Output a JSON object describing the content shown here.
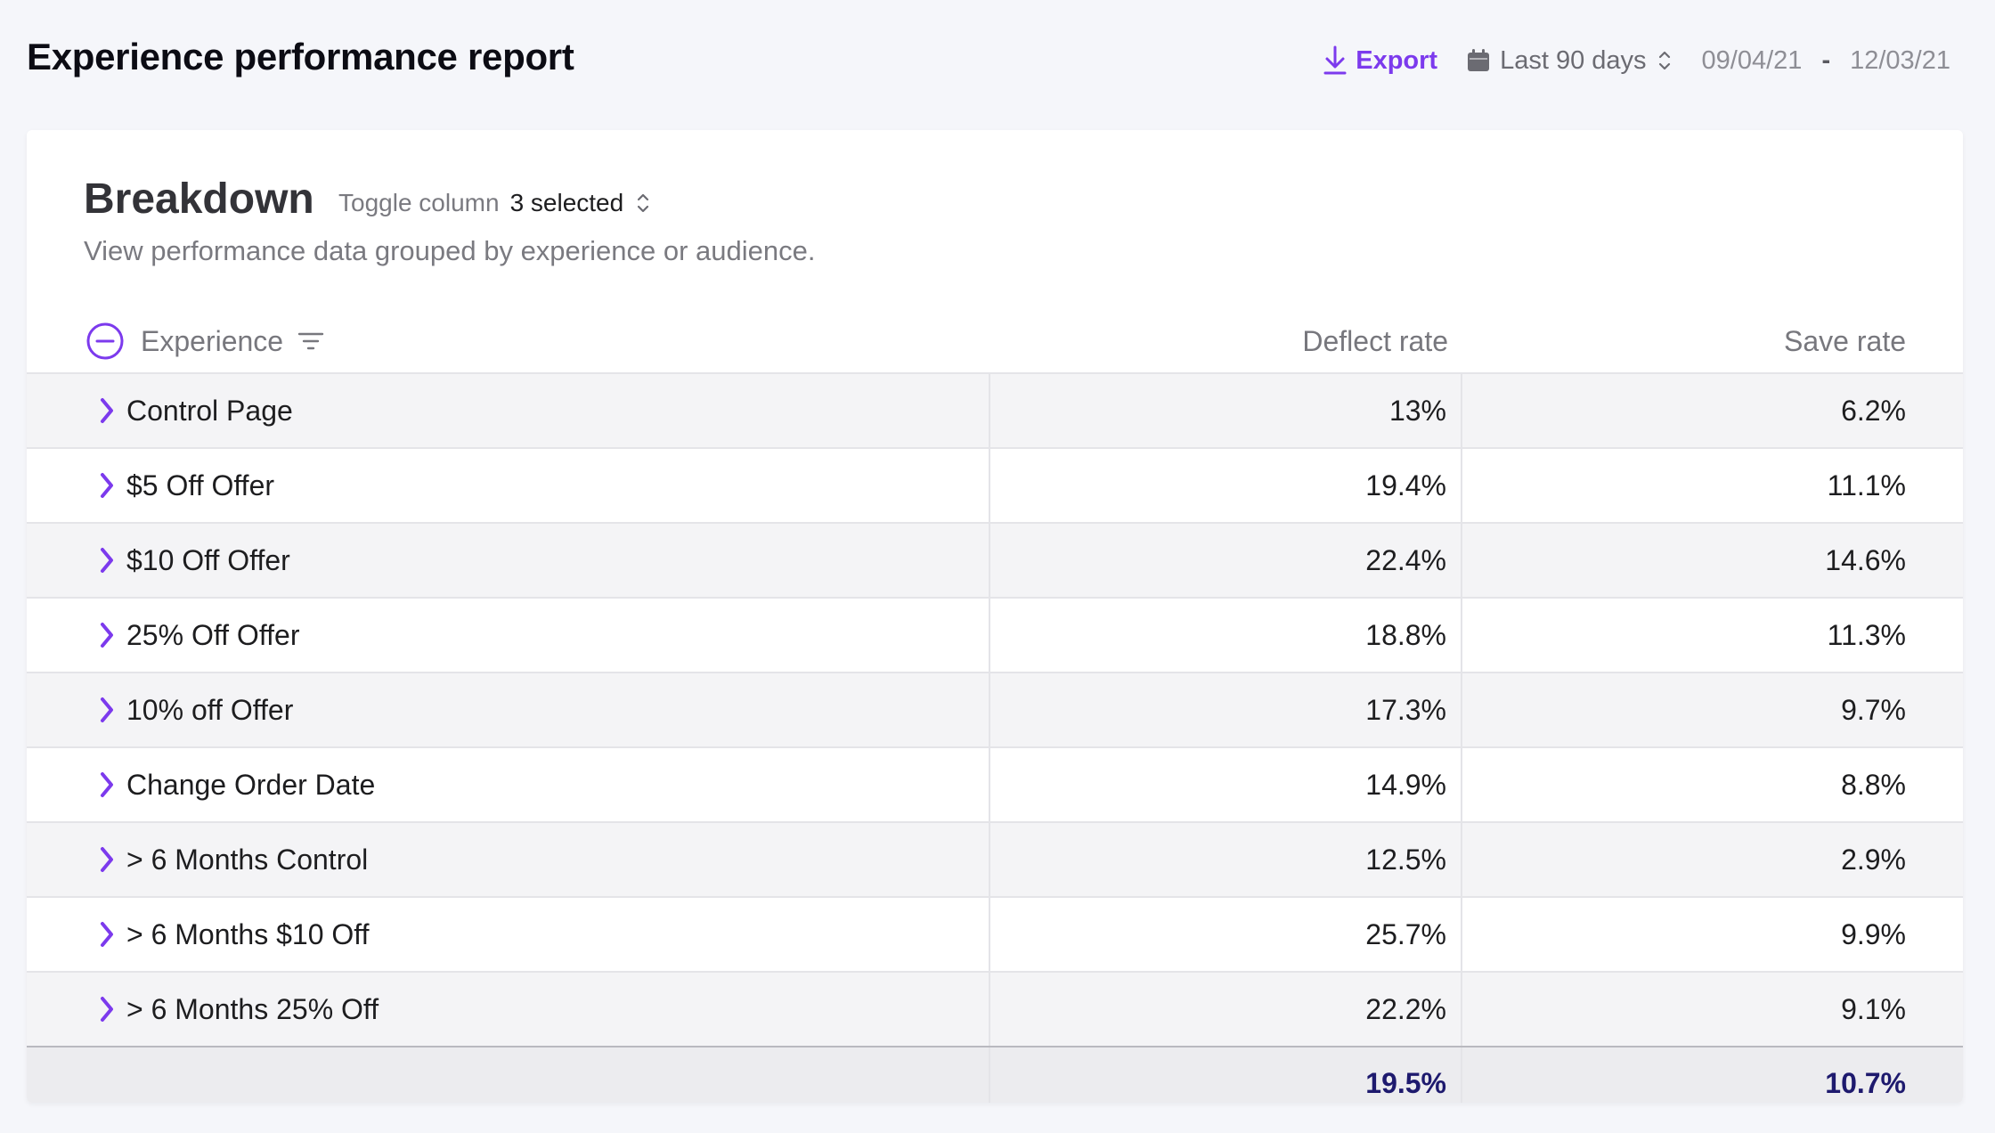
{
  "header": {
    "title": "Experience performance report",
    "export_label": "Export",
    "range_label": "Last 90 days",
    "date_start": "09/04/21",
    "date_separator": "-",
    "date_end": "12/03/21",
    "accent_color": "#7c3aed"
  },
  "breakdown": {
    "title": "Breakdown",
    "toggle_label": "Toggle column",
    "toggle_value": "3 selected",
    "subtitle": "View performance data grouped by experience or audience."
  },
  "table": {
    "columns": {
      "experience": "Experience",
      "deflect": "Deflect rate",
      "save": "Save rate"
    },
    "rows": [
      {
        "name": "Control Page",
        "deflect": "13%",
        "save": "6.2%"
      },
      {
        "name": "$5 Off Offer",
        "deflect": "19.4%",
        "save": "11.1%"
      },
      {
        "name": "$10 Off Offer",
        "deflect": "22.4%",
        "save": "14.6%"
      },
      {
        "name": "25% Off Offer",
        "deflect": "18.8%",
        "save": "11.3%"
      },
      {
        "name": "10% off Offer",
        "deflect": "17.3%",
        "save": "9.7%"
      },
      {
        "name": "Change Order Date",
        "deflect": "14.9%",
        "save": "8.8%"
      },
      {
        "name": "> 6 Months Control",
        "deflect": "12.5%",
        "save": "2.9%"
      },
      {
        "name": "> 6 Months $10 Off",
        "deflect": "25.7%",
        "save": "9.9%"
      },
      {
        "name": "> 6 Months 25% Off",
        "deflect": "22.2%",
        "save": "9.1%"
      }
    ],
    "totals": {
      "deflect": "19.5%",
      "save": "10.7%"
    }
  },
  "icons": {
    "export": "download-icon",
    "calendar": "calendar-icon",
    "sort": "chevron-up-down-icon",
    "collapse": "minus-circle-icon",
    "filter": "filter-icon",
    "expand": "chevron-right-icon"
  }
}
